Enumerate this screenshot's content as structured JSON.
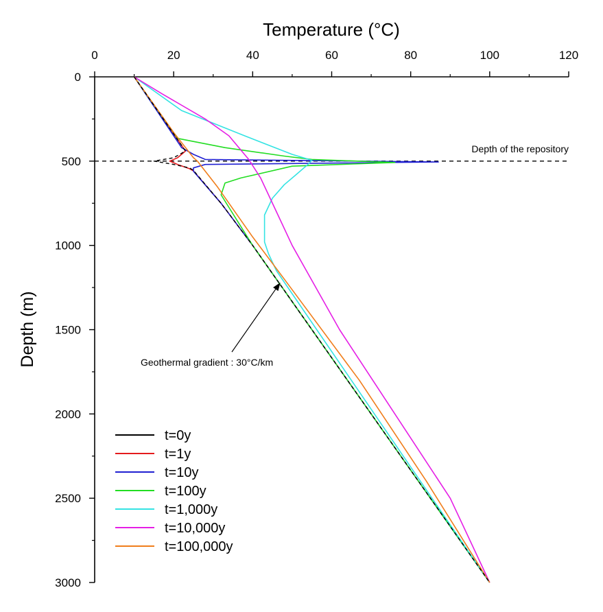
{
  "chart_data": {
    "type": "line",
    "xlabel": "Temperature (°C)",
    "ylabel": "Depth (m)",
    "xlim": [
      0,
      120
    ],
    "ylim": [
      3000,
      0
    ],
    "x_ticks": [
      0,
      20,
      40,
      60,
      80,
      100,
      120
    ],
    "y_ticks": [
      0,
      500,
      1000,
      1500,
      2000,
      2500,
      3000
    ],
    "x_axis_position": "top",
    "grid": false,
    "legend_placement": "bottom-left",
    "annotations": {
      "repository_label": "Depth of the repository",
      "repository_depth": 500,
      "gradient_label": "Geothermal gradient : 30°C/km",
      "gradient_arrow_target": [
        47,
        1220
      ]
    },
    "series": [
      {
        "name": "t=0y",
        "color": "#000000",
        "dashed": true,
        "points": [
          [
            10,
            0
          ],
          [
            23,
            440
          ],
          [
            20,
            480
          ],
          [
            15,
            500
          ],
          [
            20,
            520
          ],
          [
            24,
            540
          ],
          [
            25,
            555
          ],
          [
            32,
            750
          ],
          [
            40,
            1000
          ],
          [
            100,
            3000
          ]
        ]
      },
      {
        "name": "t=1y",
        "color": "#e41a1c",
        "points": [
          [
            10,
            0
          ],
          [
            23,
            440
          ],
          [
            21,
            480
          ],
          [
            19,
            500
          ],
          [
            21,
            520
          ],
          [
            24,
            545
          ],
          [
            25,
            558
          ],
          [
            32,
            750
          ],
          [
            40,
            1000
          ],
          [
            100,
            3000
          ]
        ]
      },
      {
        "name": "t=10y",
        "color": "#1f1fd1",
        "points": [
          [
            10,
            0
          ],
          [
            22,
            420
          ],
          [
            25,
            460
          ],
          [
            28,
            490
          ],
          [
            87,
            505
          ],
          [
            28,
            520
          ],
          [
            25,
            540
          ],
          [
            25,
            560
          ],
          [
            32,
            750
          ],
          [
            40,
            1000
          ],
          [
            100,
            3000
          ]
        ]
      },
      {
        "name": "t=100y",
        "color": "#22dd22",
        "points": [
          [
            10,
            0
          ],
          [
            19,
            300
          ],
          [
            21,
            365
          ],
          [
            33,
            420
          ],
          [
            48,
            470
          ],
          [
            55,
            490
          ],
          [
            76,
            508
          ],
          [
            50,
            530
          ],
          [
            37,
            600
          ],
          [
            33,
            630
          ],
          [
            32,
            700
          ],
          [
            40,
            1000
          ],
          [
            100,
            3000
          ]
        ]
      },
      {
        "name": "t=1,000y",
        "color": "#33e3e3",
        "points": [
          [
            10,
            0
          ],
          [
            22,
            200
          ],
          [
            38,
            350
          ],
          [
            50,
            460
          ],
          [
            55,
            495
          ],
          [
            54,
            520
          ],
          [
            51,
            580
          ],
          [
            48,
            640
          ],
          [
            45,
            720
          ],
          [
            43,
            820
          ],
          [
            43,
            980
          ],
          [
            44,
            1050
          ],
          [
            46,
            1150
          ],
          [
            100,
            3000
          ]
        ]
      },
      {
        "name": "t=10,000y",
        "color": "#e51ee5",
        "points": [
          [
            10,
            0
          ],
          [
            17,
            100
          ],
          [
            28,
            250
          ],
          [
            34,
            350
          ],
          [
            39,
            490
          ],
          [
            42,
            600
          ],
          [
            46,
            800
          ],
          [
            50,
            1000
          ],
          [
            62,
            1500
          ],
          [
            76,
            2000
          ],
          [
            90,
            2500
          ],
          [
            100,
            3000
          ]
        ]
      },
      {
        "name": "t=100,000y",
        "color": "#f07d1a",
        "points": [
          [
            10,
            0
          ],
          [
            20,
            330
          ],
          [
            25,
            480
          ],
          [
            26,
            500
          ],
          [
            27,
            530
          ],
          [
            31,
            650
          ],
          [
            40,
            950
          ],
          [
            48,
            1200
          ],
          [
            67,
            1800
          ],
          [
            84,
            2400
          ],
          [
            100,
            3000
          ]
        ]
      }
    ]
  }
}
